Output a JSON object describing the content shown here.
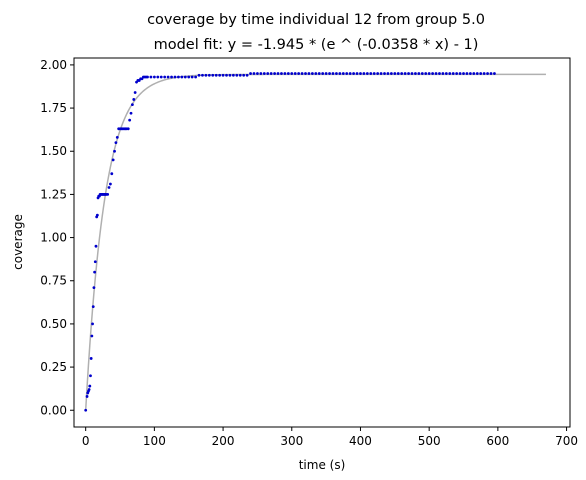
{
  "chart_data": {
    "type": "scatter",
    "title": "coverage by time individual 12 from group 5.0",
    "subtitle": "model fit: y = -1.945 * (e ^ (-0.0358 * x) - 1)",
    "xlabel": "time (s)",
    "ylabel": "coverage",
    "xlim": [
      -17,
      705
    ],
    "ylim": [
      -0.097,
      2.04
    ],
    "xticks": [
      0,
      100,
      200,
      300,
      400,
      500,
      600,
      700
    ],
    "yticks": [
      0.0,
      0.25,
      0.5,
      0.75,
      1.0,
      1.25,
      1.5,
      1.75,
      2.0
    ],
    "xtick_labels": [
      "0",
      "100",
      "200",
      "300",
      "400",
      "500",
      "600",
      "700"
    ],
    "ytick_labels": [
      "0.00",
      "0.25",
      "0.50",
      "0.75",
      "1.00",
      "1.25",
      "1.50",
      "1.75",
      "2.00"
    ],
    "grid": false,
    "fit": {
      "a": 1.945,
      "b": 0.0358,
      "x_range": [
        0,
        670
      ],
      "color": "#b0b0b0"
    },
    "series": [
      {
        "color": "#0000cc",
        "x": [
          0,
          2,
          3,
          4,
          5,
          6,
          7,
          8,
          9,
          10,
          11,
          12,
          13,
          14,
          15,
          16,
          17,
          18,
          19,
          20,
          21,
          22,
          23,
          24,
          25,
          26,
          27,
          28,
          29,
          30,
          32,
          34,
          36,
          38,
          40,
          42,
          44,
          46,
          48,
          50,
          52,
          54,
          56,
          58,
          60,
          62,
          64,
          66,
          68,
          70,
          72,
          74,
          76,
          78,
          80,
          82,
          84,
          86,
          88,
          90,
          95,
          100,
          105,
          110,
          115,
          120,
          125,
          130,
          135,
          140,
          145,
          150,
          155,
          160,
          165,
          170,
          175,
          180,
          185,
          190,
          195,
          200,
          205,
          210,
          215,
          220,
          225,
          230,
          235,
          240,
          245,
          250,
          255,
          260,
          265,
          270,
          275,
          280,
          285,
          290,
          295,
          300,
          305,
          310,
          315,
          320,
          325,
          330,
          335,
          340,
          345,
          350,
          355,
          360,
          365,
          370,
          375,
          380,
          385,
          390,
          395,
          400,
          405,
          410,
          415,
          420,
          425,
          430,
          435,
          440,
          445,
          450,
          455,
          460,
          465,
          470,
          475,
          480,
          485,
          490,
          495,
          500,
          505,
          510,
          515,
          520,
          525,
          530,
          535,
          540,
          545,
          550,
          555,
          560,
          565,
          570,
          575,
          580,
          585,
          590,
          595
        ],
        "y": [
          0.0,
          0.08,
          0.1,
          0.11,
          0.12,
          0.14,
          0.2,
          0.3,
          0.43,
          0.5,
          0.6,
          0.71,
          0.8,
          0.86,
          0.95,
          1.12,
          1.13,
          1.23,
          1.24,
          1.24,
          1.25,
          1.25,
          1.25,
          1.25,
          1.25,
          1.25,
          1.25,
          1.25,
          1.25,
          1.25,
          1.25,
          1.29,
          1.31,
          1.37,
          1.45,
          1.5,
          1.55,
          1.58,
          1.63,
          1.63,
          1.63,
          1.63,
          1.63,
          1.63,
          1.63,
          1.63,
          1.68,
          1.72,
          1.77,
          1.8,
          1.84,
          1.9,
          1.91,
          1.91,
          1.92,
          1.92,
          1.93,
          1.93,
          1.93,
          1.93,
          1.93,
          1.93,
          1.93,
          1.93,
          1.93,
          1.93,
          1.93,
          1.93,
          1.93,
          1.93,
          1.93,
          1.93,
          1.93,
          1.93,
          1.94,
          1.94,
          1.94,
          1.94,
          1.94,
          1.94,
          1.94,
          1.94,
          1.94,
          1.94,
          1.94,
          1.94,
          1.94,
          1.94,
          1.94,
          1.95,
          1.95,
          1.95,
          1.95,
          1.95,
          1.95,
          1.95,
          1.95,
          1.95,
          1.95,
          1.95,
          1.95,
          1.95,
          1.95,
          1.95,
          1.95,
          1.95,
          1.95,
          1.95,
          1.95,
          1.95,
          1.95,
          1.95,
          1.95,
          1.95,
          1.95,
          1.95,
          1.95,
          1.95,
          1.95,
          1.95,
          1.95,
          1.95,
          1.95,
          1.95,
          1.95,
          1.95,
          1.95,
          1.95,
          1.95,
          1.95,
          1.95,
          1.95,
          1.95,
          1.95,
          1.95,
          1.95,
          1.95,
          1.95,
          1.95,
          1.95,
          1.95,
          1.95,
          1.95,
          1.95,
          1.95,
          1.95,
          1.95,
          1.95,
          1.95,
          1.95,
          1.95,
          1.95,
          1.95,
          1.95,
          1.95,
          1.95,
          1.95,
          1.95,
          1.95,
          1.95,
          1.95
        ]
      }
    ]
  }
}
